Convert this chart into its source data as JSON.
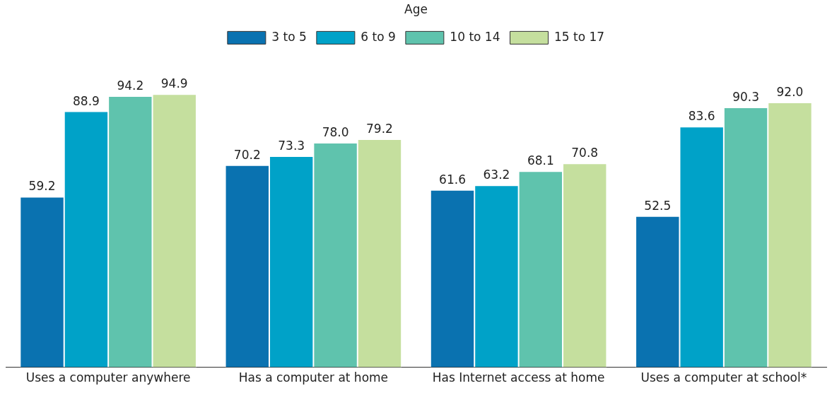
{
  "chart_data": {
    "type": "bar",
    "legend_title": "Age",
    "legend": "top",
    "grid": false,
    "tick_labels": "x",
    "categories": [
      "Uses a computer anywhere",
      "Has a computer at home",
      "Has Internet access at home",
      "Uses a computer at school*"
    ],
    "series": [
      {
        "name": "3 to 5",
        "color": "#0a72b0",
        "values": [
          59.2,
          70.2,
          61.6,
          52.5
        ],
        "value_labels": [
          "59.2",
          "70.2",
          "61.6",
          "52.5"
        ]
      },
      {
        "name": "6 to 9",
        "color": "#00a2c8",
        "values": [
          88.9,
          73.3,
          63.2,
          83.6
        ],
        "value_labels": [
          "88.9",
          "73.3",
          "63.2",
          "83.6"
        ]
      },
      {
        "name": "10 to 14",
        "color": "#5fc3ad",
        "values": [
          94.2,
          78.0,
          68.1,
          90.3
        ],
        "value_labels": [
          "94.2",
          "78.0",
          "68.1",
          "90.3"
        ]
      },
      {
        "name": "15 to 17",
        "color": "#c5df9e",
        "values": [
          94.9,
          79.2,
          70.8,
          92.0
        ],
        "value_labels": [
          "94.9",
          "79.2",
          "70.8",
          "92.0"
        ]
      }
    ]
  }
}
